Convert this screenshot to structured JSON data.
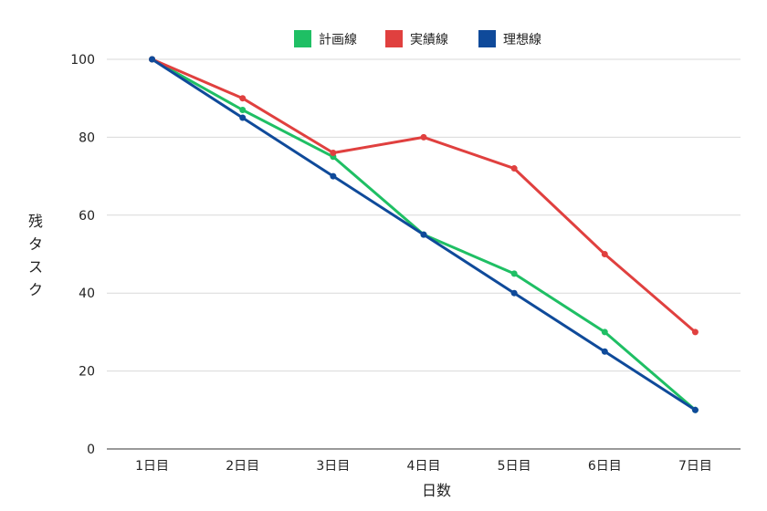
{
  "chart_data": {
    "type": "line",
    "xlabel": "日数",
    "ylabel": "残タスク",
    "categories": [
      "1日目",
      "2日目",
      "3日目",
      "4日目",
      "5日目",
      "6日目",
      "7日目"
    ],
    "ylim": [
      0,
      100
    ],
    "yticks": [
      "0",
      "20",
      "40",
      "60",
      "80",
      "100"
    ],
    "grid": true,
    "legend_position": "top",
    "series": [
      {
        "name": "計画線",
        "color": "#1fbf64",
        "values": [
          100,
          87,
          75,
          55,
          45,
          30,
          10
        ]
      },
      {
        "name": "実績線",
        "color": "#e0403f",
        "values": [
          100,
          90,
          76,
          80,
          72,
          50,
          30
        ]
      },
      {
        "name": "理想線",
        "color": "#0f4a9a",
        "values": [
          100,
          85,
          70,
          55,
          40,
          25,
          10
        ]
      }
    ]
  }
}
